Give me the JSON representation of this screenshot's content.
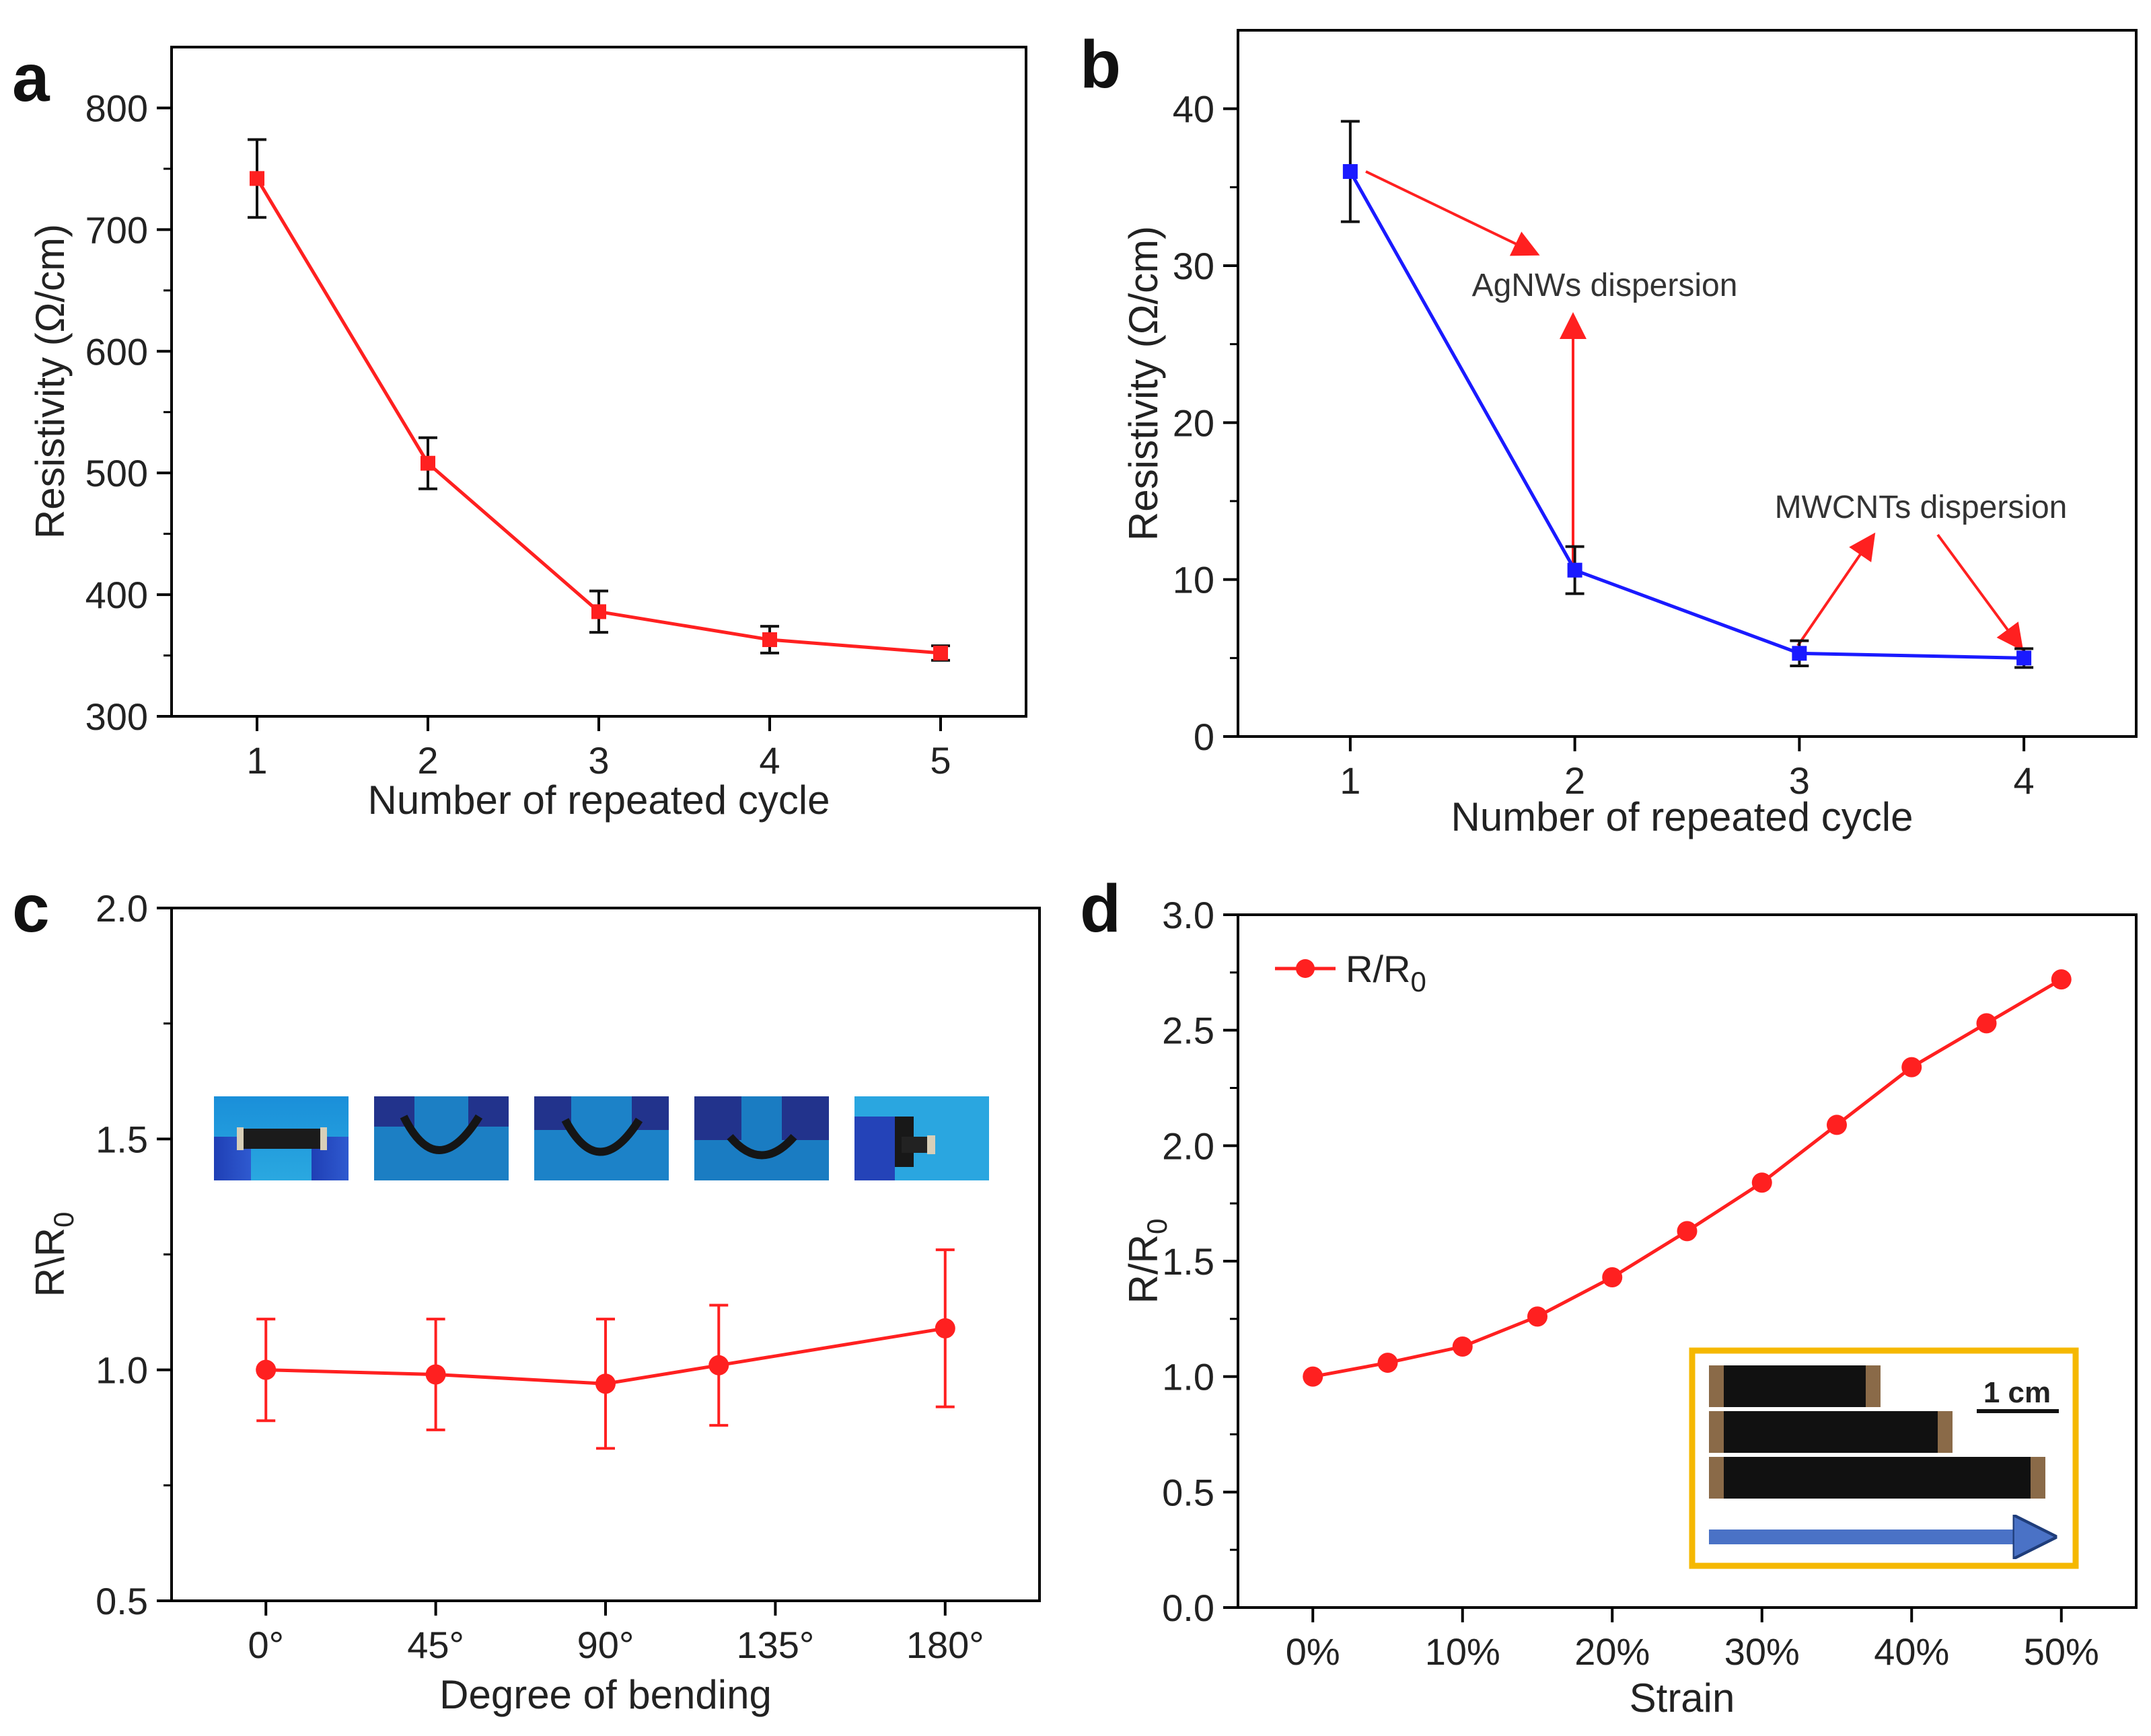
{
  "colors": {
    "red": "#ff2020",
    "blue": "#1a1aff",
    "error": "#111111",
    "orange": "#f5b800",
    "arrow": "#4a72c6"
  },
  "chart_data": [
    {
      "panel": "a",
      "type": "line",
      "xlabel": "Number of repeated cycle",
      "ylabel": "Resistivity (Ω/cm)",
      "x": [
        1,
        2,
        3,
        4,
        5
      ],
      "xticks": [
        "1",
        "2",
        "3",
        "4",
        "5"
      ],
      "xlim": [
        0.5,
        5.5
      ],
      "ylim": [
        300,
        850
      ],
      "yticks": [
        "300",
        "400",
        "500",
        "600",
        "700",
        "800"
      ],
      "series": [
        {
          "values": [
            742,
            508,
            386,
            363,
            352
          ],
          "errors": [
            32,
            21,
            17,
            11,
            6
          ],
          "color": "#ff2020",
          "marker": "square"
        }
      ]
    },
    {
      "panel": "b",
      "type": "line",
      "xlabel": "Number of repeated cycle",
      "ylabel": "Resistivity (Ω/cm)",
      "x": [
        1,
        2,
        3,
        4
      ],
      "xticks": [
        "1",
        "2",
        "3",
        "4"
      ],
      "xlim": [
        0.5,
        4.5
      ],
      "ylim": [
        0,
        45
      ],
      "yticks": [
        "0",
        "10",
        "20",
        "30",
        "40"
      ],
      "series": [
        {
          "values": [
            36,
            10.6,
            5.3,
            5.0
          ],
          "errors": [
            3.2,
            1.5,
            0.8,
            0.6
          ],
          "color": "#1a1aff",
          "marker": "square"
        }
      ],
      "annotations": [
        {
          "text": "AgNWs dispersion"
        },
        {
          "text": "MWCNTs dispersion"
        }
      ]
    },
    {
      "panel": "c",
      "type": "line",
      "xlabel": "Degree of bending",
      "ylabel": "R\\R",
      "ylabel_sub": "0",
      "x": [
        0,
        45,
        90,
        120,
        180
      ],
      "xtick_values": [
        0,
        45,
        90,
        135,
        180
      ],
      "xticks": [
        "0°",
        "45°",
        "90°",
        "135°",
        "180°"
      ],
      "xlim": [
        -25,
        205
      ],
      "ylim": [
        0.5,
        2.0
      ],
      "yticks": [
        "0.5",
        "1.0",
        "1.5",
        "2.0"
      ],
      "series": [
        {
          "values": [
            1.0,
            0.99,
            0.97,
            1.01,
            1.09
          ],
          "errors": [
            0.11,
            0.12,
            0.14,
            0.13,
            0.17
          ],
          "color": "#ff2020",
          "marker": "circle"
        }
      ]
    },
    {
      "panel": "d",
      "type": "line",
      "xlabel": "Strain",
      "ylabel": "R/R",
      "ylabel_sub": "0",
      "x": [
        0,
        5,
        10,
        15,
        20,
        25,
        30,
        35,
        40,
        45,
        50
      ],
      "xtick_values": [
        0,
        10,
        20,
        30,
        40,
        50
      ],
      "xticks": [
        "0%",
        "10%",
        "20%",
        "30%",
        "40%",
        "50%"
      ],
      "xlim": [
        -5,
        55
      ],
      "ylim": [
        0,
        3.0
      ],
      "yticks": [
        "0.0",
        "0.5",
        "1.0",
        "1.5",
        "2.0",
        "2.5",
        "3.0"
      ],
      "legend": {
        "label": "R/R",
        "sub": "0",
        "position": "top-left"
      },
      "series": [
        {
          "values": [
            1.0,
            1.06,
            1.13,
            1.26,
            1.43,
            1.63,
            1.84,
            2.09,
            2.34,
            2.53,
            2.72
          ],
          "color": "#ff2020",
          "marker": "circle"
        }
      ],
      "inset": {
        "scale_label": "1 cm"
      }
    }
  ]
}
